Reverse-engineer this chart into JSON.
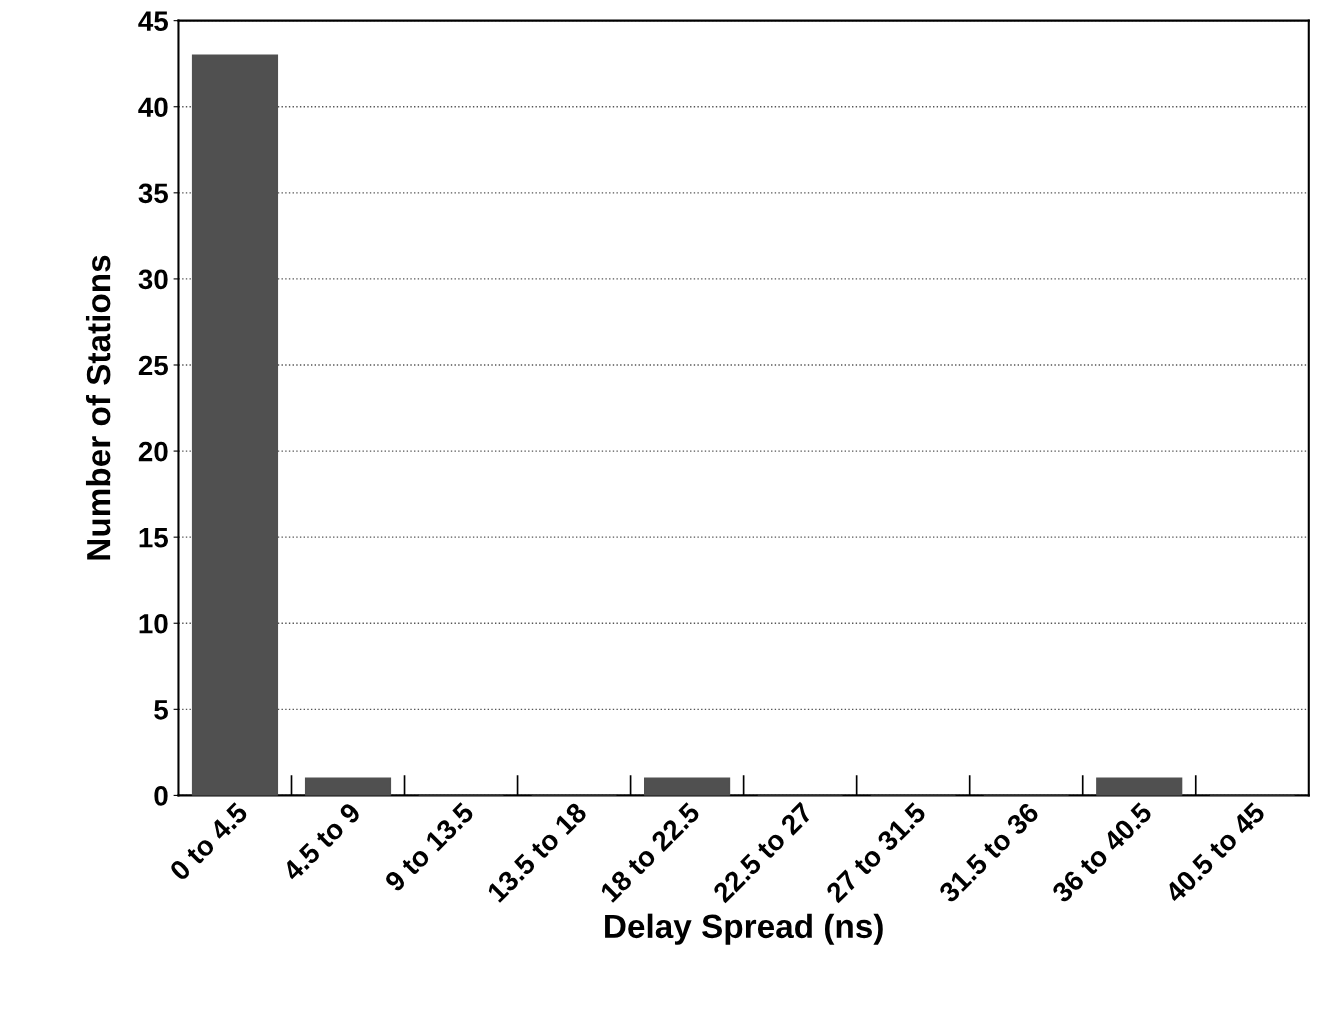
{
  "chart_data": {
    "type": "bar",
    "xlabel": "Delay Spread (ns)",
    "ylabel": "Number of Stations",
    "categories": [
      "0 to 4.5",
      "4.5 to 9",
      "9 to 13.5",
      "13.5 to 18",
      "18 to 22.5",
      "22.5 to 27",
      "27 to 31.5",
      "31.5 to 36",
      "36 to 40.5",
      "40.5 to 45"
    ],
    "values": [
      43,
      1,
      0,
      0,
      1,
      0,
      0,
      0,
      1,
      0
    ],
    "color": "#505050",
    "ylim": [
      0,
      45
    ],
    "yticks": [
      0,
      5,
      10,
      15,
      20,
      25,
      30,
      35,
      40,
      45
    ],
    "grid": "y"
  }
}
